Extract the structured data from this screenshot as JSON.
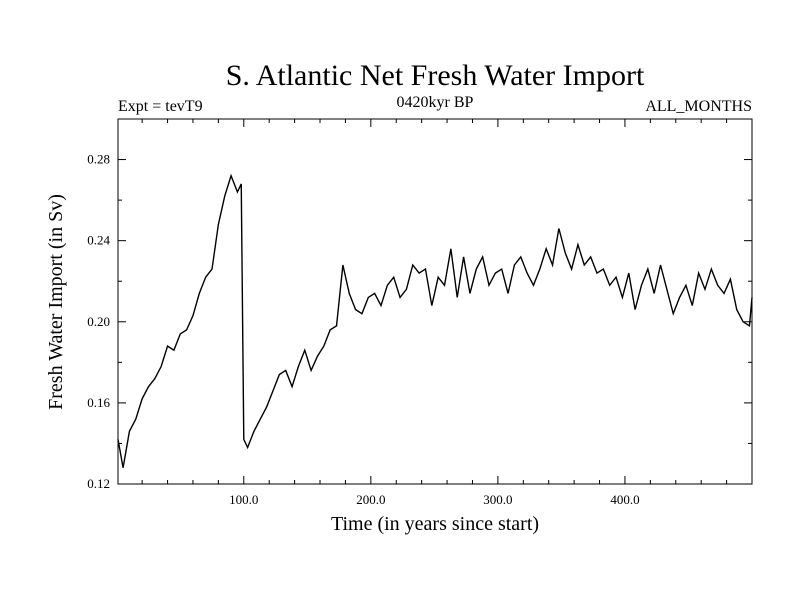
{
  "chart_data": {
    "type": "line",
    "title": "S. Atlantic Net Fresh Water Import",
    "left_label": "Expt = tevT9",
    "center_label": "0420kyr BP",
    "right_label": "ALL_MONTHS",
    "xlabel": "Time (in years since start)",
    "ylabel": "Fresh Water Import (in Sv)",
    "xlim": [
      1,
      500
    ],
    "ylim": [
      0.12,
      0.3
    ],
    "x_ticks": [
      {
        "value": 100,
        "label": "100.0"
      },
      {
        "value": 200,
        "label": "200.0"
      },
      {
        "value": 300,
        "label": "300.0"
      },
      {
        "value": 400,
        "label": "400.0"
      }
    ],
    "y_ticks": [
      {
        "value": 0.12,
        "label": "0.12"
      },
      {
        "value": 0.16,
        "label": "0.16"
      },
      {
        "value": 0.2,
        "label": "0.20"
      },
      {
        "value": 0.24,
        "label": "0.24"
      },
      {
        "value": 0.28,
        "label": "0.28"
      }
    ],
    "grid": false,
    "line_color": "#000000",
    "series": [
      {
        "x": [
          1,
          5,
          10,
          15,
          20,
          25,
          30,
          35,
          40,
          45,
          50,
          55,
          60,
          65,
          70,
          75,
          80,
          85,
          90,
          95,
          98,
          100,
          103,
          108,
          113,
          118,
          123,
          128,
          133,
          138,
          143,
          148,
          153,
          158,
          163,
          168,
          173,
          178,
          183,
          188,
          193,
          198,
          203,
          208,
          213,
          218,
          223,
          228,
          233,
          238,
          243,
          248,
          253,
          258,
          263,
          268,
          273,
          278,
          283,
          288,
          293,
          298,
          303,
          308,
          313,
          318,
          323,
          328,
          333,
          338,
          343,
          348,
          353,
          358,
          363,
          368,
          373,
          378,
          383,
          388,
          393,
          398,
          403,
          408,
          413,
          418,
          423,
          428,
          433,
          438,
          443,
          448,
          453,
          458,
          463,
          468,
          473,
          478,
          483,
          488,
          493,
          498,
          500
        ],
        "y": [
          0.142,
          0.128,
          0.146,
          0.152,
          0.162,
          0.168,
          0.172,
          0.178,
          0.188,
          0.186,
          0.194,
          0.196,
          0.203,
          0.214,
          0.222,
          0.226,
          0.248,
          0.262,
          0.272,
          0.264,
          0.268,
          0.142,
          0.138,
          0.146,
          0.152,
          0.158,
          0.166,
          0.174,
          0.176,
          0.168,
          0.178,
          0.186,
          0.176,
          0.183,
          0.188,
          0.196,
          0.198,
          0.228,
          0.214,
          0.206,
          0.204,
          0.212,
          0.214,
          0.208,
          0.218,
          0.222,
          0.212,
          0.216,
          0.228,
          0.224,
          0.226,
          0.208,
          0.222,
          0.218,
          0.236,
          0.212,
          0.232,
          0.214,
          0.226,
          0.232,
          0.218,
          0.224,
          0.226,
          0.214,
          0.228,
          0.232,
          0.224,
          0.218,
          0.226,
          0.236,
          0.228,
          0.246,
          0.234,
          0.226,
          0.238,
          0.228,
          0.232,
          0.224,
          0.226,
          0.218,
          0.222,
          0.212,
          0.224,
          0.206,
          0.218,
          0.226,
          0.214,
          0.228,
          0.216,
          0.204,
          0.212,
          0.218,
          0.208,
          0.224,
          0.216,
          0.226,
          0.218,
          0.214,
          0.221,
          0.206,
          0.2,
          0.198,
          0.212
        ]
      }
    ]
  }
}
